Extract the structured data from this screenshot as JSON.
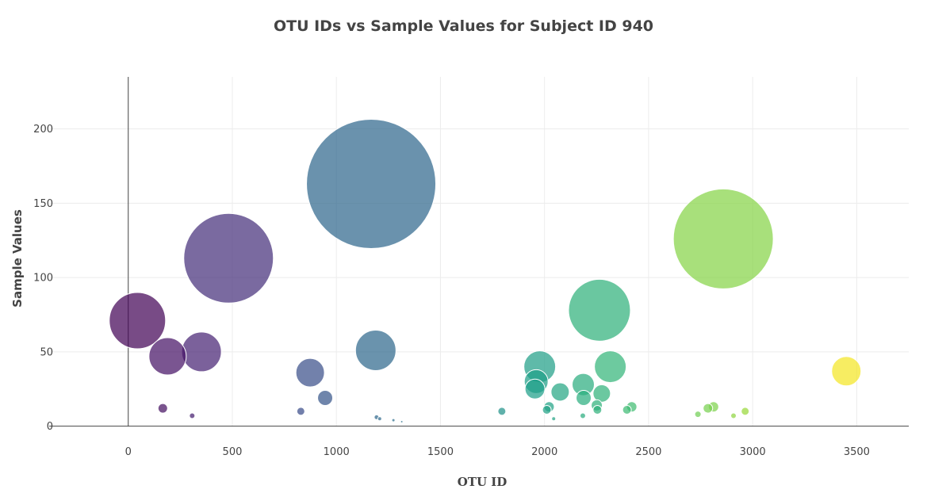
{
  "chart_data": {
    "type": "scatter",
    "variant": "bubble",
    "title": "OTU IDs vs Sample Values for Subject ID 940",
    "xlabel": "OTU ID",
    "ylabel": "Sample Values",
    "xlim": [
      -380,
      3750
    ],
    "ylim": [
      -5,
      235
    ],
    "x_ticks": [
      0,
      500,
      1000,
      1500,
      2000,
      2500,
      3000,
      3500
    ],
    "y_ticks": [
      0,
      50,
      100,
      150,
      200
    ],
    "grid": true,
    "legend": "none",
    "colorscale": "viridis",
    "color_range": [
      0,
      3500
    ],
    "marker_size": "proportional to sample value",
    "points": [
      {
        "x": 44,
        "y": 71
      },
      {
        "x": 189,
        "y": 47
      },
      {
        "x": 352,
        "y": 50
      },
      {
        "x": 482,
        "y": 113
      },
      {
        "x": 166,
        "y": 12
      },
      {
        "x": 307,
        "y": 7
      },
      {
        "x": 874,
        "y": 36
      },
      {
        "x": 946,
        "y": 19
      },
      {
        "x": 829,
        "y": 10
      },
      {
        "x": 1167,
        "y": 163
      },
      {
        "x": 1189,
        "y": 51
      },
      {
        "x": 1193,
        "y": 6
      },
      {
        "x": 1208,
        "y": 5
      },
      {
        "x": 1274,
        "y": 4
      },
      {
        "x": 1314,
        "y": 3
      },
      {
        "x": 1795,
        "y": 10
      },
      {
        "x": 1977,
        "y": 40
      },
      {
        "x": 1960,
        "y": 30
      },
      {
        "x": 1954,
        "y": 25
      },
      {
        "x": 2075,
        "y": 23
      },
      {
        "x": 2022,
        "y": 13
      },
      {
        "x": 2011,
        "y": 11
      },
      {
        "x": 2044,
        "y": 5
      },
      {
        "x": 2186,
        "y": 28
      },
      {
        "x": 2188,
        "y": 19
      },
      {
        "x": 2264,
        "y": 78
      },
      {
        "x": 2316,
        "y": 40
      },
      {
        "x": 2275,
        "y": 22
      },
      {
        "x": 2251,
        "y": 14
      },
      {
        "x": 2254,
        "y": 11
      },
      {
        "x": 2184,
        "y": 7
      },
      {
        "x": 2419,
        "y": 13
      },
      {
        "x": 2396,
        "y": 11
      },
      {
        "x": 2859,
        "y": 126
      },
      {
        "x": 2812,
        "y": 13
      },
      {
        "x": 2785,
        "y": 12
      },
      {
        "x": 2964,
        "y": 10
      },
      {
        "x": 2737,
        "y": 8
      },
      {
        "x": 2908,
        "y": 7
      },
      {
        "x": 3450,
        "y": 37
      }
    ]
  }
}
